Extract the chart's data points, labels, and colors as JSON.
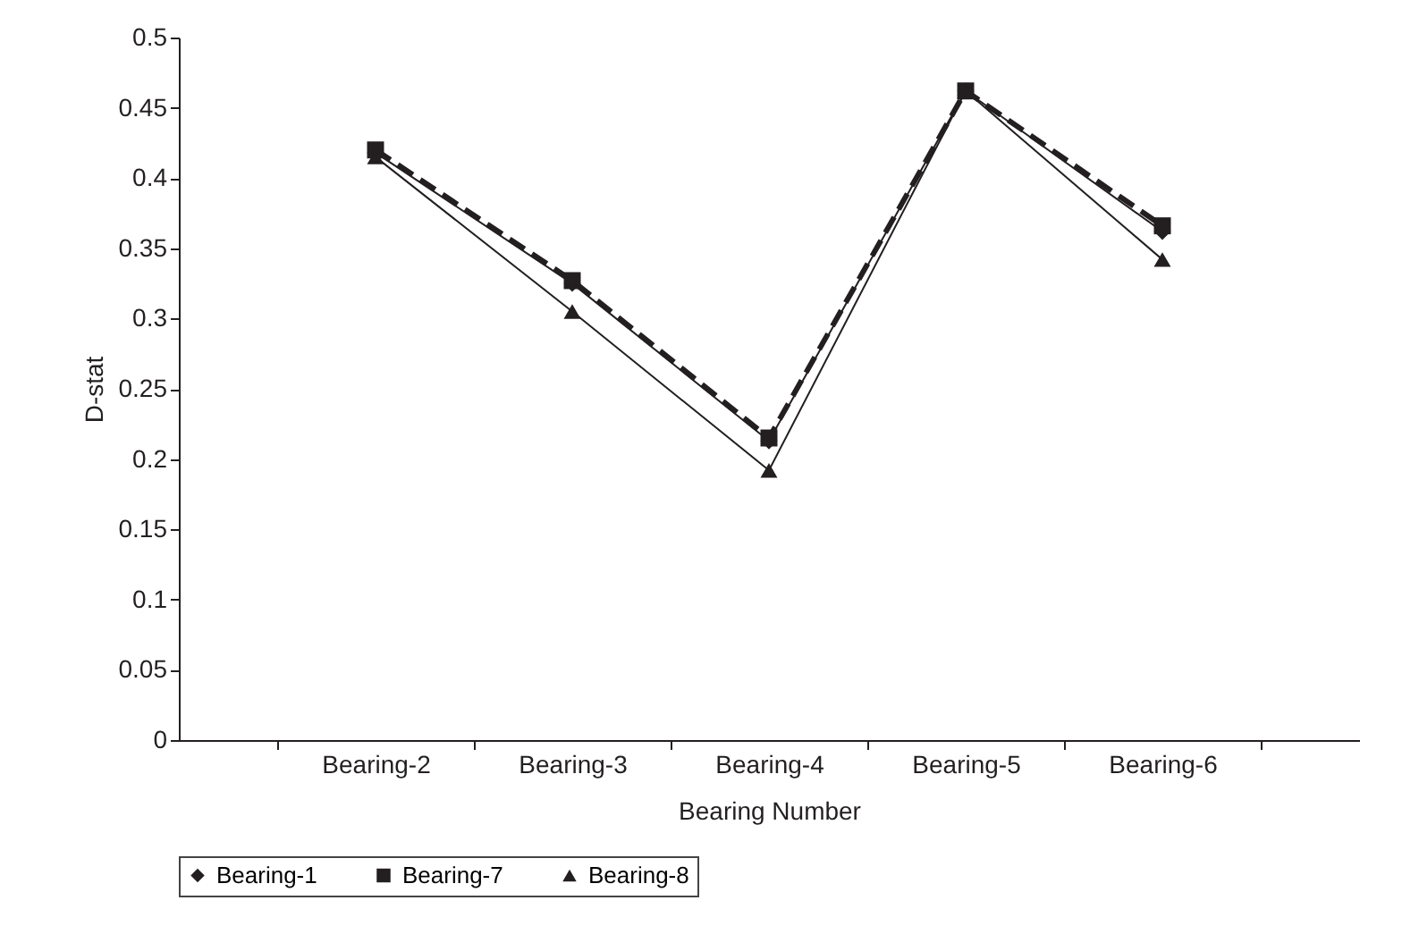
{
  "chart_data": {
    "type": "line",
    "xlabel": "Bearing Number",
    "ylabel": "D-stat",
    "categories": [
      "Bearing-2",
      "Bearing-3",
      "Bearing-4",
      "Bearing-5",
      "Bearing-6"
    ],
    "series": [
      {
        "name": "Bearing-1",
        "color": "#231f20",
        "marker": "diamond",
        "line_style": "solid",
        "values": [
          0.418,
          0.325,
          0.213,
          0.462,
          0.362
        ]
      },
      {
        "name": "Bearing-7",
        "color": "#231f20",
        "marker": "square",
        "line_style": "dashed",
        "values": [
          0.42,
          0.327,
          0.215,
          0.462,
          0.366
        ]
      },
      {
        "name": "Bearing-8",
        "color": "#231f20",
        "marker": "triangle",
        "line_style": "solid",
        "values": [
          0.415,
          0.305,
          0.192,
          0.462,
          0.342
        ]
      }
    ],
    "ylim": [
      0,
      0.5
    ],
    "yticks": [
      0,
      0.05,
      0.1,
      0.15,
      0.2,
      0.25,
      0.3,
      0.35,
      0.4,
      0.45,
      0.5
    ],
    "grid": false,
    "legend": "bottom"
  }
}
